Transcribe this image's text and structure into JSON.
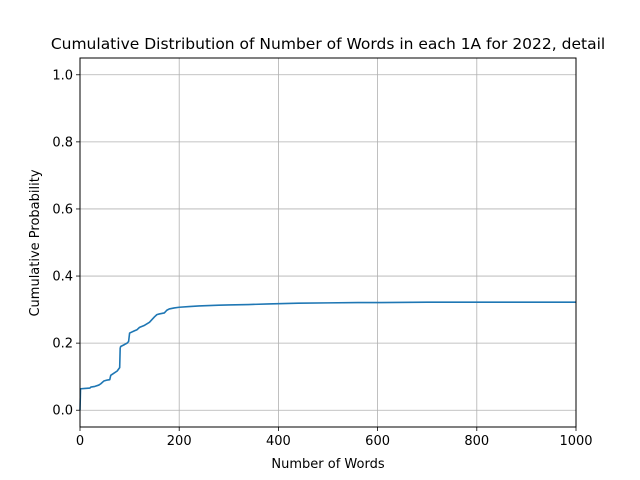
{
  "chart_data": {
    "type": "line",
    "title": "Cumulative Distribution of Number of Words in each 1A for 2022, detail",
    "xlabel": "Number of Words",
    "ylabel": "Cumulative Probability",
    "xlim": [
      0,
      1000
    ],
    "ylim": [
      -0.05,
      1.05
    ],
    "x_ticks": [
      0,
      200,
      400,
      600,
      800,
      1000
    ],
    "y_ticks": [
      0.0,
      0.2,
      0.4,
      0.6,
      0.8,
      1.0
    ],
    "x_tick_labels": [
      "0",
      "200",
      "400",
      "600",
      "800",
      "1000"
    ],
    "y_tick_labels": [
      "0.0",
      "0.2",
      "0.4",
      "0.6",
      "0.8",
      "1.0"
    ],
    "grid": true,
    "series": [
      {
        "color": "#1f77b4",
        "x": [
          0,
          1,
          2,
          10,
          20,
          22,
          30,
          38,
          42,
          48,
          55,
          60,
          62,
          68,
          75,
          80,
          81,
          82,
          90,
          95,
          98,
          100,
          110,
          115,
          120,
          130,
          140,
          150,
          155,
          160,
          170,
          175,
          180,
          190,
          200,
          220,
          240,
          260,
          280,
          300,
          340,
          380,
          440,
          500,
          560,
          600,
          700,
          800,
          900,
          1000
        ],
        "y": [
          0.0,
          0.063,
          0.064,
          0.065,
          0.066,
          0.069,
          0.071,
          0.075,
          0.079,
          0.087,
          0.09,
          0.091,
          0.104,
          0.11,
          0.117,
          0.127,
          0.185,
          0.19,
          0.196,
          0.2,
          0.205,
          0.23,
          0.237,
          0.24,
          0.247,
          0.253,
          0.262,
          0.278,
          0.285,
          0.287,
          0.29,
          0.298,
          0.302,
          0.305,
          0.307,
          0.309,
          0.311,
          0.312,
          0.313,
          0.314,
          0.315,
          0.317,
          0.319,
          0.32,
          0.321,
          0.321,
          0.322,
          0.322,
          0.322,
          0.322
        ]
      }
    ]
  }
}
